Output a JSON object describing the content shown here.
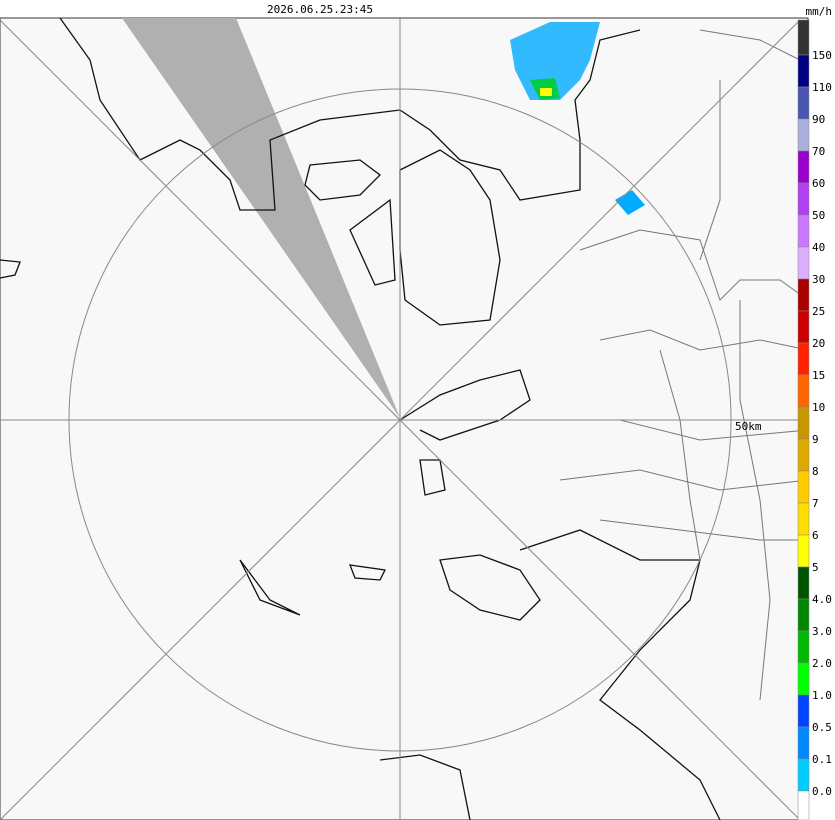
{
  "header": {
    "timestamp": "2026.06.25.23:45"
  },
  "legend": {
    "unit": "mm/h",
    "labels": [
      "150",
      "110",
      "90",
      "70",
      "60",
      "50",
      "40",
      "30",
      "25",
      "20",
      "15",
      "10",
      "9",
      "8",
      "7",
      "6",
      "5",
      "4.0",
      "3.0",
      "2.0",
      "1.0",
      "0.5",
      "0.1",
      "0.0"
    ],
    "colors": [
      "#333333",
      "#000080",
      "#4a55b0",
      "#aab0dc",
      "#9900cc",
      "#b040f0",
      "#cc77ff",
      "#ddb0ff",
      "#aa0000",
      "#cc0000",
      "#ff2200",
      "#ff6600",
      "#c89600",
      "#ddaa00",
      "#ffcc00",
      "#ffdd00",
      "#ffff00",
      "#005500",
      "#008800",
      "#00bb00",
      "#00ff00",
      "#0044ff",
      "#0088ff",
      "#00ccff",
      "#ffffff"
    ]
  },
  "map": {
    "range_label": "50km"
  }
}
